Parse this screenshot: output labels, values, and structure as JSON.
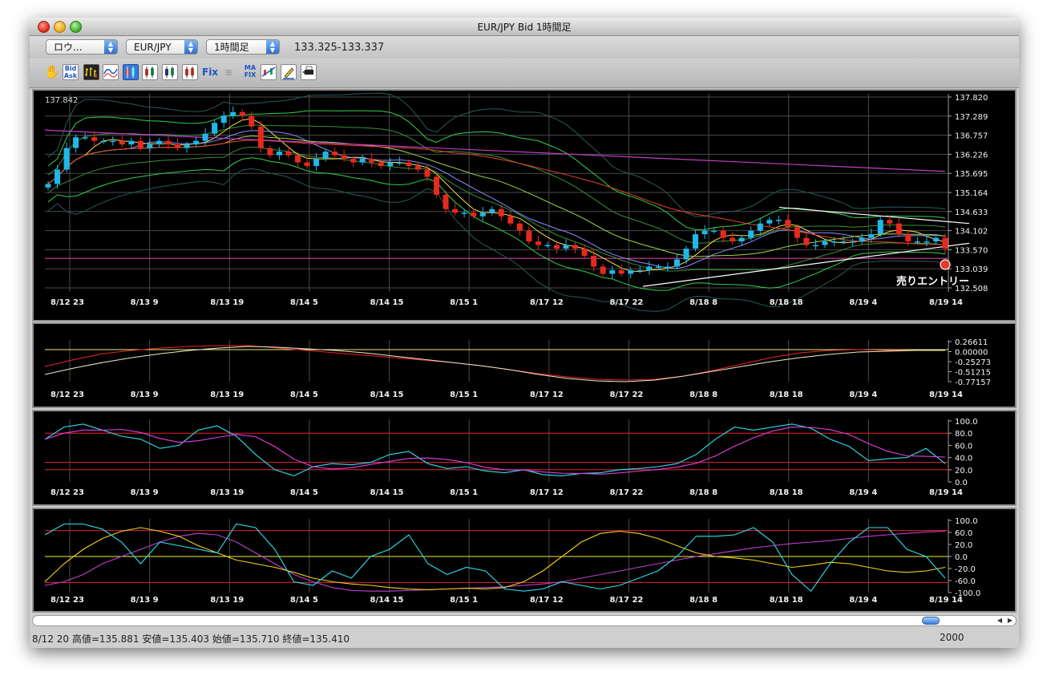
{
  "window": {
    "title": "EUR/JPY Bid 1時間足"
  },
  "toolbar": {
    "selects": [
      {
        "name": "layout-select",
        "value": "ロウ..."
      },
      {
        "name": "currency-pair-select",
        "value": "EUR/JPY"
      },
      {
        "name": "timeframe-select",
        "value": "1時間足"
      }
    ],
    "price_range": "133.325-133.337",
    "tools": [
      {
        "name": "hand-tool-icon",
        "label": ""
      },
      {
        "name": "bid-ask-button",
        "label": "Bid Ask"
      },
      {
        "name": "bar-chart-icon",
        "label": ""
      },
      {
        "name": "line-chart-icon",
        "label": ""
      },
      {
        "name": "candlestick-1-icon",
        "label": ""
      },
      {
        "name": "candlestick-2-icon",
        "label": ""
      },
      {
        "name": "candlestick-3-icon",
        "label": ""
      },
      {
        "name": "candlestick-4-icon",
        "label": ""
      },
      {
        "name": "fix-button",
        "label": "Fix"
      },
      {
        "name": "disabled-tool-icon",
        "label": ""
      },
      {
        "name": "ma-fix-button",
        "label": "MA FIX"
      },
      {
        "name": "indicator-icon",
        "label": ""
      },
      {
        "name": "pencil-icon",
        "label": ""
      },
      {
        "name": "print-icon",
        "label": ""
      }
    ]
  },
  "x_labels": [
    "8/12 23",
    "8/13 9",
    "8/13 19",
    "8/14 5",
    "8/14 15",
    "8/15 1",
    "8/17 12",
    "8/17 22",
    "8/18 8",
    "8/18 18",
    "8/19 4",
    "8/19 14"
  ],
  "main_chart": {
    "top_left_label": "137.842",
    "y_labels": [
      "137.820",
      "137.289",
      "136.757",
      "136.226",
      "135.695",
      "135.164",
      "134.633",
      "134.102",
      "133.570",
      "133.039",
      "132.508"
    ],
    "ymin": 132.508,
    "ymax": 137.82,
    "annotation": "売りエントリー",
    "price_line": 133.33
  },
  "macd_panel": {
    "y_labels": [
      "0.26611",
      "0.00000",
      "-0.25273",
      "-0.51215",
      "-0.77157"
    ]
  },
  "stoch_panel": {
    "y_labels": [
      "100.0",
      "80.0",
      "60.0",
      "40.0",
      "20.0",
      "0.0"
    ]
  },
  "dmi_panel": {
    "y_labels": [
      "100.0",
      "60.0",
      "20.0",
      "0.0",
      "-20.0",
      "-60.0",
      "-100.0"
    ]
  },
  "chart_data": {
    "type": "candlestick",
    "ylim": [
      132.508,
      137.82
    ],
    "x_tick_labels": [
      "8/12 23",
      "8/13 9",
      "8/13 19",
      "8/14 5",
      "8/14 15",
      "8/15 1",
      "8/17 12",
      "8/17 22",
      "8/18 8",
      "8/18 18",
      "8/19 4",
      "8/19 14"
    ],
    "close_approx": [
      135.4,
      135.8,
      136.4,
      136.7,
      136.7,
      136.6,
      136.6,
      136.6,
      136.5,
      136.6,
      136.4,
      136.5,
      136.6,
      136.5,
      136.4,
      136.5,
      136.6,
      136.8,
      137.1,
      137.3,
      137.4,
      137.3,
      137.0,
      136.4,
      136.2,
      136.3,
      136.2,
      136.0,
      135.9,
      136.1,
      136.3,
      136.2,
      136.1,
      136.0,
      136.1,
      136.0,
      135.9,
      136.0,
      136.0,
      135.9,
      135.8,
      135.6,
      135.1,
      134.7,
      134.6,
      134.6,
      134.5,
      134.6,
      134.7,
      134.5,
      134.3,
      134.1,
      133.8,
      133.7,
      133.7,
      133.6,
      133.7,
      133.6,
      133.4,
      133.1,
      132.9,
      133.0,
      132.9,
      133.0,
      133.0,
      133.1,
      133.1,
      133.1,
      133.3,
      133.6,
      134.0,
      134.1,
      134.1,
      133.9,
      133.8,
      133.9,
      134.1,
      134.3,
      134.4,
      134.4,
      134.2,
      133.9,
      133.7,
      133.7,
      133.8,
      133.8,
      133.8,
      133.8,
      133.9,
      134.0,
      134.4,
      134.3,
      134.0,
      133.8,
      133.8,
      133.8,
      133.9,
      133.6
    ]
  }
}
